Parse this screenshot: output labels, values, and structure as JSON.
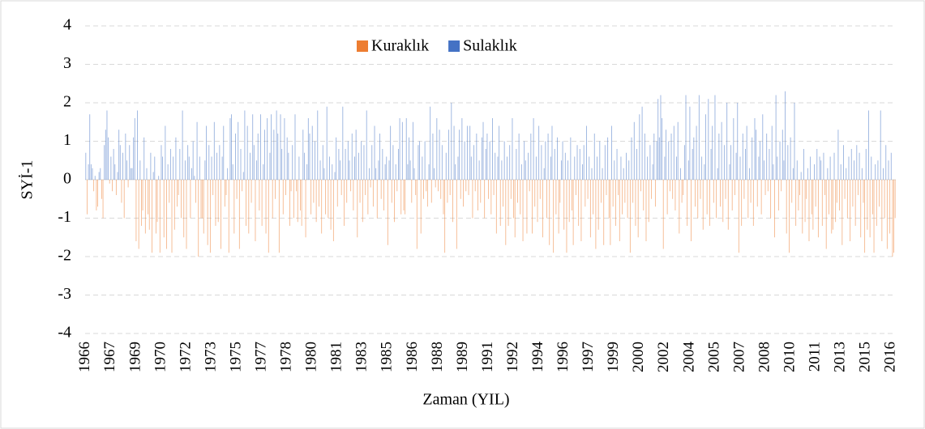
{
  "chart_data": {
    "type": "bar",
    "y_axis_label": "SYİ-1",
    "x_axis_label": "Zaman (YIL)",
    "legend_position": "top",
    "legend": [
      {
        "name": "Kuraklık",
        "color": "#ed7d31",
        "sign": "negative"
      },
      {
        "name": "Sulaklık",
        "color": "#4472c4",
        "sign": "positive"
      }
    ],
    "ylim": [
      -4,
      4
    ],
    "yticks": [
      -4,
      -3,
      -2,
      -1,
      0,
      1,
      2,
      3,
      4
    ],
    "grid": true,
    "categories": [
      "1966",
      null,
      null,
      null,
      null,
      null,
      null,
      null,
      null,
      null,
      null,
      null,
      null,
      null,
      null,
      null,
      null,
      null,
      null,
      "1967",
      null,
      null,
      null,
      null,
      null,
      null,
      null,
      null,
      null,
      null,
      null,
      null,
      null,
      null,
      null,
      null,
      null,
      null,
      "1969",
      null,
      null,
      null,
      null,
      null,
      null,
      null,
      null,
      null,
      null,
      null,
      null,
      null,
      null,
      null,
      null,
      null,
      null,
      "1970",
      null,
      null,
      null,
      null,
      null,
      null,
      null,
      null,
      null,
      null,
      null,
      null,
      null,
      null,
      null,
      null,
      null,
      null,
      "1972",
      null,
      null,
      null,
      null,
      null,
      null,
      null,
      null,
      null,
      null,
      null,
      null,
      null,
      null,
      null,
      null,
      null,
      null,
      "1973",
      null,
      null,
      null,
      null,
      null,
      null,
      null,
      null,
      null,
      null,
      null,
      null,
      null,
      null,
      null,
      null,
      null,
      null,
      "1975",
      null,
      null,
      null,
      null,
      null,
      null,
      null,
      null,
      null,
      null,
      null,
      null,
      null,
      null,
      null,
      null,
      null,
      null,
      "1977",
      null,
      null,
      null,
      null,
      null,
      null,
      null,
      null,
      null,
      null,
      null,
      null,
      null,
      null,
      null,
      null,
      null,
      null,
      "1978",
      null,
      null,
      null,
      null,
      null,
      null,
      null,
      null,
      null,
      null,
      null,
      null,
      null,
      null,
      null,
      null,
      null,
      null,
      "1980",
      null,
      null,
      null,
      null,
      null,
      null,
      null,
      null,
      null,
      null,
      null,
      null,
      null,
      null,
      null,
      null,
      null,
      null,
      "1981",
      null,
      null,
      null,
      null,
      null,
      null,
      null,
      null,
      null,
      null,
      null,
      null,
      null,
      null,
      null,
      null,
      null,
      null,
      "1983",
      null,
      null,
      null,
      null,
      null,
      null,
      null,
      null,
      null,
      null,
      null,
      null,
      null,
      null,
      null,
      null,
      null,
      null,
      "1985",
      null,
      null,
      null,
      null,
      null,
      null,
      null,
      null,
      null,
      null,
      null,
      null,
      null,
      null,
      null,
      null,
      null,
      null,
      "1986",
      null,
      null,
      null,
      null,
      null,
      null,
      null,
      null,
      null,
      null,
      null,
      null,
      null,
      null,
      null,
      null,
      null,
      null,
      "1988",
      null,
      null,
      null,
      null,
      null,
      null,
      null,
      null,
      null,
      null,
      null,
      null,
      null,
      null,
      null,
      null,
      null,
      null,
      "1989",
      null,
      null,
      null,
      null,
      null,
      null,
      null,
      null,
      null,
      null,
      null,
      null,
      null,
      null,
      null,
      null,
      null,
      null,
      "1991",
      null,
      null,
      null,
      null,
      null,
      null,
      null,
      null,
      null,
      null,
      null,
      null,
      null,
      null,
      null,
      null,
      null,
      null,
      "1992",
      null,
      null,
      null,
      null,
      null,
      null,
      null,
      null,
      null,
      null,
      null,
      null,
      null,
      null,
      null,
      null,
      null,
      null,
      "1994",
      null,
      null,
      null,
      null,
      null,
      null,
      null,
      null,
      null,
      null,
      null,
      null,
      null,
      null,
      null,
      null,
      null,
      null,
      "1996",
      null,
      null,
      null,
      null,
      null,
      null,
      null,
      null,
      null,
      null,
      null,
      null,
      null,
      null,
      null,
      null,
      null,
      null,
      "1997",
      null,
      null,
      null,
      null,
      null,
      null,
      null,
      null,
      null,
      null,
      null,
      null,
      null,
      null,
      null,
      null,
      null,
      null,
      "1999",
      null,
      null,
      null,
      null,
      null,
      null,
      null,
      null,
      null,
      null,
      null,
      null,
      null,
      null,
      null,
      null,
      null,
      null,
      "2000",
      null,
      null,
      null,
      null,
      null,
      null,
      null,
      null,
      null,
      null,
      null,
      null,
      null,
      null,
      null,
      null,
      null,
      null,
      "2002",
      null,
      null,
      null,
      null,
      null,
      null,
      null,
      null,
      null,
      null,
      null,
      null,
      null,
      null,
      null,
      null,
      null,
      null,
      "2004",
      null,
      null,
      null,
      null,
      null,
      null,
      null,
      null,
      null,
      null,
      null,
      null,
      null,
      null,
      null,
      null,
      null,
      null,
      "2005",
      null,
      null,
      null,
      null,
      null,
      null,
      null,
      null,
      null,
      null,
      null,
      null,
      null,
      null,
      null,
      null,
      null,
      null,
      "2007",
      null,
      null,
      null,
      null,
      null,
      null,
      null,
      null,
      null,
      null,
      null,
      null,
      null,
      null,
      null,
      null,
      null,
      null,
      "2008",
      null,
      null,
      null,
      null,
      null,
      null,
      null,
      null,
      null,
      null,
      null,
      null,
      null,
      null,
      null,
      null,
      null,
      null,
      "2010",
      null,
      null,
      null,
      null,
      null,
      null,
      null,
      null,
      null,
      null,
      null,
      null,
      null,
      null,
      null,
      null,
      null,
      null,
      "2011",
      null,
      null,
      null,
      null,
      null,
      null,
      null,
      null,
      null,
      null,
      null,
      null,
      null,
      null,
      null,
      null,
      null,
      null,
      "2013",
      null,
      null,
      null,
      null,
      null,
      null,
      null,
      null,
      null,
      null,
      null,
      null,
      null,
      null,
      null,
      null,
      null,
      null,
      "2015",
      null,
      null,
      null,
      null,
      null,
      null,
      null,
      null,
      null,
      null,
      null,
      null,
      null,
      null,
      null,
      null,
      null,
      null,
      "2016",
      null,
      null,
      null
    ],
    "values": [
      0.7,
      -0.9,
      0.4,
      1.7,
      0.4,
      0.3,
      -0.3,
      0.1,
      -0.8,
      -0.7,
      0.2,
      0.3,
      -0.5,
      -1.0,
      0.9,
      1.3,
      1.8,
      1.1,
      -0.1,
      0.6,
      -0.3,
      0.8,
      0.4,
      -0.4,
      0.2,
      1.3,
      0.9,
      -0.6,
      0.7,
      -1.0,
      1.2,
      0.5,
      -0.2,
      0.9,
      0.3,
      0.3,
      1.1,
      1.6,
      -1.6,
      1.8,
      -1.8,
      0.5,
      -1.2,
      -0.8,
      1.1,
      -1.4,
      0.3,
      -0.9,
      -1.3,
      0.7,
      -1.9,
      0.2,
      0.6,
      -1.4,
      -1.1,
      0.1,
      -1.9,
      0.9,
      0.6,
      -1.5,
      1.4,
      -1.8,
      0.4,
      -0.6,
      0.8,
      -1.9,
      0.6,
      -1.3,
      1.1,
      -0.7,
      -0.4,
      0.8,
      -1.0,
      1.8,
      -1.5,
      0.5,
      -1.8,
      0.9,
      0.6,
      -1.0,
      0.3,
      1.0,
      0.1,
      -0.6,
      1.5,
      -2.0,
      0.6,
      -1.0,
      -1.0,
      -1.4,
      0.5,
      1.4,
      -1.7,
      0.9,
      -1.9,
      0.6,
      -0.4,
      1.5,
      -1.2,
      0.7,
      -1.1,
      0.9,
      -1.8,
      0.6,
      1.4,
      -0.7,
      -0.4,
      0.3,
      -1.9,
      1.6,
      1.7,
      0.4,
      -1.4,
      1.2,
      -0.5,
      1.5,
      -1.8,
      0.8,
      -0.3,
      0.2,
      1.8,
      -1.2,
      1.4,
      -1.4,
      0.7,
      -0.6,
      1.7,
      0.9,
      -1.6,
      0.5,
      1.2,
      -0.8,
      1.7,
      -1.2,
      0.4,
      1.3,
      -1.4,
      1.6,
      -1.9,
      0.7,
      1.7,
      -1.0,
      1.3,
      -0.5,
      1.8,
      1.2,
      -1.9,
      1.7,
      0.8,
      -0.9,
      1.6,
      -0.4,
      1.1,
      0.7,
      -1.2,
      -0.3,
      0.9,
      -1.0,
      1.7,
      -0.3,
      -1.1,
      0.6,
      -0.8,
      -1.2,
      1.3,
      0.7,
      -1.5,
      0.4,
      1.6,
      1.2,
      -0.9,
      1.4,
      -0.6,
      1.0,
      -1.1,
      1.8,
      -0.7,
      0.5,
      -1.4,
      0.9,
      0.3,
      -0.9,
      1.9,
      -1.0,
      0.6,
      -1.3,
      0.4,
      -1.6,
      0.2,
      1.1,
      -0.7,
      0.8,
      0.5,
      -0.4,
      1.9,
      -1.2,
      0.8,
      -0.6,
      1.0,
      0.5,
      -0.3,
      1.2,
      -0.8,
      0.6,
      1.3,
      -1.5,
      0.7,
      -0.6,
      1.0,
      -1.1,
      0.9,
      -0.4,
      1.8,
      -0.9,
      0.3,
      -0.2,
      0.9,
      -0.7,
      1.4,
      0.3,
      -1.0,
      0.5,
      1.2,
      -0.5,
      0.8,
      -0.8,
      0.4,
      0.6,
      -1.7,
      0.5,
      1.4,
      -0.6,
      0.9,
      -1.1,
      0.4,
      -0.3,
      0.8,
      1.6,
      -0.9,
      1.5,
      -0.8,
      -0.9,
      1.6,
      0.4,
      1.1,
      0.5,
      -0.6,
      1.5,
      0.3,
      -0.4,
      -1.8,
      0.9,
      1.0,
      -1.4,
      0.6,
      -0.5,
      1.0,
      -0.3,
      -0.7,
      0.4,
      1.9,
      -0.6,
      1.2,
      0.3,
      -0.2,
      1.6,
      -0.3,
      1.3,
      -0.5,
      0.9,
      -0.9,
      -1.9,
      0.7,
      -0.6,
      1.3,
      -0.4,
      2.0,
      -1.1,
      1.4,
      0.4,
      -1.8,
      0.6,
      1.3,
      -0.5,
      1.6,
      -0.7,
      1.0,
      -0.3,
      1.4,
      -0.4,
      1.4,
      0.6,
      -1.0,
      0.9,
      -0.3,
      1.2,
      -0.8,
      0.5,
      -0.6,
      1.1,
      1.5,
      -1.0,
      0.8,
      1.2,
      -0.5,
      1.0,
      -0.9,
      1.6,
      -0.4,
      0.7,
      -1.4,
      0.6,
      1.4,
      -1.2,
      0.5,
      -0.7,
      1.0,
      -1.7,
      0.6,
      -1.2,
      0.9,
      -0.5,
      1.6,
      -1.0,
      -1.5,
      0.8,
      -0.6,
      1.2,
      -0.9,
      0.4,
      -1.6,
      1.0,
      0.5,
      -1.4,
      0.7,
      -0.3,
      1.2,
      -1.4,
      1.6,
      -0.7,
      0.6,
      -1.1,
      1.4,
      -0.5,
      0.9,
      -1.5,
      0.3,
      1.0,
      -1.0,
      1.2,
      -1.7,
      0.6,
      1.4,
      -1.9,
      0.8,
      -0.9,
      1.1,
      -1.4,
      -0.6,
      0.5,
      1.0,
      -1.3,
      0.7,
      -1.9,
      0.5,
      -1.1,
      1.1,
      -0.8,
      -1.7,
      0.6,
      -0.4,
      0.9,
      -1.2,
      0.8,
      -1.6,
      0.4,
      0.9,
      -0.7,
      1.4,
      -0.5,
      0.6,
      -1.5,
      0.3,
      -0.9,
      1.2,
      -1.8,
      0.6,
      -1.3,
      1.0,
      -0.6,
      0.3,
      -1.7,
      0.9,
      -0.4,
      1.1,
      -1.0,
      -1.7,
      1.4,
      -0.7,
      0.5,
      -1.2,
      0.8,
      -0.4,
      -1.6,
      0.6,
      -0.9,
      0.3,
      -0.6,
      0.7,
      -1.0,
      0.5,
      -1.9,
      1.1,
      -0.6,
      1.5,
      -1.2,
      0.8,
      -1.5,
      1.7,
      -0.3,
      1.9,
      -0.8,
      1.2,
      -1.6,
      0.6,
      -1.1,
      0.9,
      -0.5,
      0.4,
      1.2,
      -0.7,
      1.0,
      2.1,
      1.1,
      2.2,
      1.6,
      -1.8,
      0.6,
      1.3,
      -0.9,
      1.0,
      -0.3,
      1.2,
      -0.5,
      1.4,
      -0.8,
      0.6,
      1.5,
      -1.4,
      0.3,
      -0.6,
      -0.4,
      0.9,
      2.2,
      -1.2,
      0.5,
      1.9,
      -1.6,
      0.8,
      1.1,
      -0.7,
      1.4,
      -1.0,
      2.2,
      -0.5,
      0.6,
      -1.3,
      0.4,
      1.7,
      -0.9,
      2.1,
      -1.2,
      0.8,
      1.4,
      -0.6,
      2.2,
      -1.0,
      0.3,
      1.2,
      -0.7,
      1.5,
      -1.1,
      0.9,
      -0.5,
      2.0,
      -1.3,
      0.4,
      0.9,
      -0.8,
      1.6,
      -0.4,
      0.7,
      2.0,
      -1.9,
      0.6,
      -1.2,
      1.2,
      -0.5,
      0.8,
      1.4,
      -1.0,
      0.3,
      -0.6,
      1.1,
      -1.2,
      1.6,
      1.3,
      -0.7,
      0.6,
      1.0,
      -0.9,
      1.7,
      0.5,
      -0.4,
      1.2,
      -0.3,
      0.8,
      -1.0,
      1.4,
      0.4,
      -1.5,
      2.2,
      0.6,
      -0.8,
      1.0,
      -0.3,
      1.3,
      0.5,
      2.3,
      -1.4,
      0.9,
      -1.9,
      1.1,
      -0.6,
      0.3,
      2.0,
      -1.2,
      0.5,
      -0.8,
      -0.4,
      0.2,
      -1.4,
      0.8,
      -1.1,
      -0.5,
      0.3,
      -1.6,
      0.6,
      -0.9,
      -1.3,
      0.4,
      -0.7,
      0.8,
      -1.5,
      0.6,
      0.5,
      -1.2,
      0.7,
      -0.4,
      -1.8,
      0.3,
      -0.9,
      0.6,
      -1.4,
      -1.3,
      0.7,
      -1.1,
      -0.6,
      1.3,
      -0.8,
      0.4,
      -1.7,
      0.9,
      -0.5,
      0.3,
      -1.0,
      0.6,
      -1.6,
      0.8,
      -0.7,
      0.5,
      -1.2,
      0.9,
      -0.4,
      0.7,
      -1.5,
      0.3,
      -0.6,
      -1.9,
      0.8,
      -1.3,
      1.8,
      -1.5,
      0.6,
      -0.9,
      -1.9,
      0.4,
      -1.2,
      0.5,
      -0.7,
      1.8,
      -1.6,
      0.3,
      -1.0,
      0.9,
      -1.8,
      0.5,
      -1.4,
      0.7,
      -2.0,
      -1.9,
      -1.0
    ]
  }
}
